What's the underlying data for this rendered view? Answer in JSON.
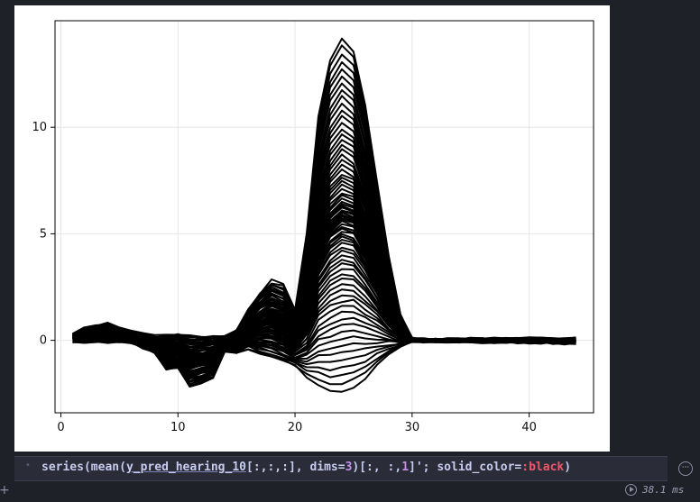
{
  "cell": {
    "code_tokens": [
      {
        "text": "series",
        "kind": "fn"
      },
      {
        "text": "(",
        "kind": "op"
      },
      {
        "text": "mean",
        "kind": "fn"
      },
      {
        "text": "(",
        "kind": "op"
      },
      {
        "text": "y_pred_hearing_10",
        "kind": "var"
      },
      {
        "text": "[:,:,:], dims=",
        "kind": "op"
      },
      {
        "text": "3",
        "kind": "num"
      },
      {
        "text": ")[:, :,",
        "kind": "op"
      },
      {
        "text": "1",
        "kind": "num"
      },
      {
        "text": "]'; solid_color=",
        "kind": "op"
      },
      {
        "text": ":black",
        "kind": "sym"
      },
      {
        "text": ")",
        "kind": "op"
      }
    ],
    "menu_glyph": "···",
    "add_glyph": "+",
    "runtime": "38.1 ms"
  },
  "colors": {
    "background": "#1f2129",
    "plot_background": "#ffffff",
    "line_color": "#000000",
    "grid_color": "#e6e6e6",
    "symbol_color": "#f0566b",
    "number_color": "#c38fe6"
  },
  "chart_data": {
    "type": "line",
    "title": "",
    "xlabel": "",
    "ylabel": "",
    "xlim": [
      -0.5,
      45.5
    ],
    "ylim": [
      -3.4,
      15.0
    ],
    "x_ticks": [
      0,
      10,
      20,
      30,
      40
    ],
    "y_ticks": [
      0,
      5,
      10
    ],
    "grid": true,
    "legend": "none",
    "series_count": 80,
    "x": [
      1,
      2,
      3,
      4,
      5,
      6,
      7,
      8,
      9,
      10,
      11,
      12,
      13,
      14,
      15,
      16,
      17,
      18,
      19,
      20,
      21,
      22,
      23,
      24,
      25,
      26,
      27,
      28,
      29,
      30,
      31,
      32,
      33,
      34,
      35,
      36,
      37,
      38,
      39,
      40,
      41,
      42,
      43,
      44
    ],
    "envelope_top": {
      "x": [
        1,
        2,
        4,
        6,
        8,
        10,
        12,
        14,
        15,
        16,
        17,
        18,
        19,
        20,
        21,
        22,
        23,
        24,
        25,
        26,
        27,
        28,
        29,
        30,
        31,
        44
      ],
      "values": [
        0.3,
        0.6,
        0.8,
        0.4,
        0.2,
        0.3,
        0.2,
        0.2,
        0.5,
        1.4,
        2.2,
        2.8,
        2.6,
        1.4,
        5.0,
        10.5,
        13.2,
        14.2,
        13.6,
        11.0,
        7.5,
        4.0,
        1.2,
        0.1,
        0.05,
        0.1
      ]
    },
    "envelope_bottom": {
      "x": [
        1,
        6,
        8,
        9,
        10,
        11,
        12,
        13,
        14,
        15,
        16,
        18,
        20,
        21,
        22,
        23,
        24,
        25,
        26,
        27,
        28,
        29,
        30,
        31,
        44
      ],
      "values": [
        -0.1,
        -0.1,
        -0.6,
        -1.4,
        -1.3,
        -2.2,
        -2.0,
        -1.8,
        -0.5,
        -0.6,
        -0.4,
        -0.8,
        -1.2,
        -1.7,
        -2.1,
        -2.4,
        -2.4,
        -2.2,
        -1.8,
        -1.2,
        -0.7,
        -0.3,
        -0.05,
        -0.05,
        -0.15
      ]
    }
  }
}
